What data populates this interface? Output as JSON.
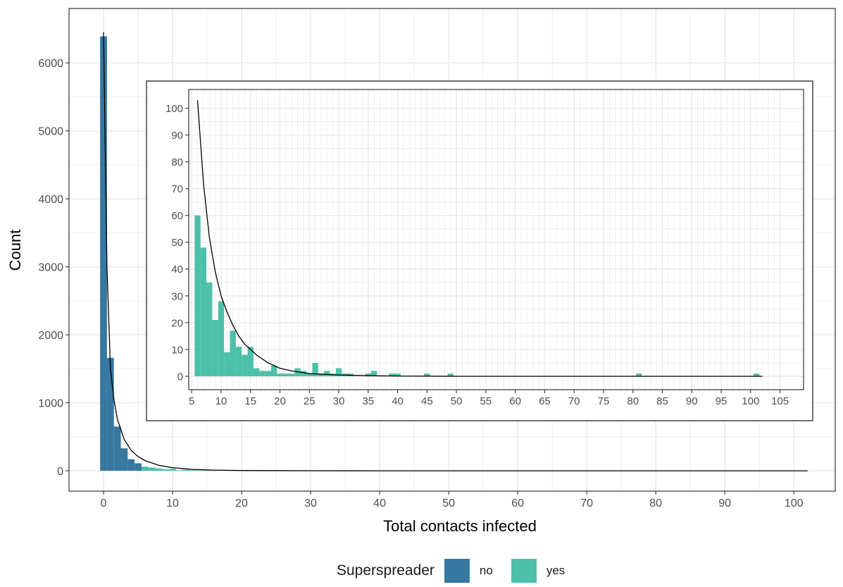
{
  "colors": {
    "no": "#3777a0",
    "yes": "#4cc0a8",
    "curve": "#000000",
    "grid": "#ebebeb",
    "panel_border": "#333333"
  },
  "legend": {
    "title": "Superspreader",
    "items": [
      {
        "key": "no",
        "label": "no"
      },
      {
        "key": "yes",
        "label": "yes"
      }
    ]
  },
  "chart_data": [
    {
      "name": "main",
      "type": "bar",
      "xlabel": "Total contacts infected",
      "ylabel": "Count",
      "xlim": [
        -5,
        106
      ],
      "ylim": [
        -300,
        6800
      ],
      "x_ticks": [
        0,
        10,
        20,
        30,
        40,
        50,
        60,
        70,
        80,
        90,
        100
      ],
      "y_ticks": [
        0,
        1000,
        2000,
        3000,
        4000,
        5000,
        6000
      ],
      "grid": true,
      "series": [
        {
          "name": "no",
          "x": [
            0,
            1,
            2,
            3,
            4,
            5
          ],
          "values": [
            6390,
            1660,
            650,
            330,
            170,
            110
          ]
        },
        {
          "name": "yes",
          "x": [
            6,
            7,
            8,
            9,
            10,
            11,
            12,
            13,
            14,
            15,
            16
          ],
          "values": [
            60,
            48,
            35,
            21,
            28,
            9,
            17,
            11,
            8,
            11,
            3
          ]
        }
      ],
      "curve": {
        "x": [
          0,
          0.5,
          1,
          1.5,
          2,
          3,
          4,
          5,
          6,
          8,
          10,
          13,
          16,
          20,
          30,
          40,
          60,
          80,
          102
        ],
        "y": [
          6450,
          3000,
          1500,
          1050,
          760,
          460,
          300,
          210,
          150,
          80,
          45,
          20,
          10,
          4,
          1,
          0,
          0,
          0,
          0
        ]
      }
    },
    {
      "name": "inset",
      "type": "bar",
      "xlabel": "",
      "ylabel": "",
      "xlim": [
        4.5,
        109
      ],
      "ylim": [
        -5,
        107
      ],
      "x_ticks": [
        5,
        10,
        15,
        20,
        25,
        30,
        35,
        40,
        45,
        50,
        55,
        60,
        65,
        70,
        75,
        80,
        85,
        90,
        95,
        100,
        105
      ],
      "y_ticks": [
        0,
        10,
        20,
        30,
        40,
        50,
        60,
        70,
        80,
        90,
        100
      ],
      "grid": true,
      "series": [
        {
          "name": "yes",
          "x": [
            6,
            7,
            8,
            9,
            10,
            11,
            12,
            13,
            14,
            15,
            16,
            17,
            18,
            19,
            20,
            21,
            22,
            23,
            24,
            25,
            26,
            27,
            28,
            29,
            30,
            31,
            32,
            33,
            34,
            35,
            36,
            37,
            38,
            39,
            40,
            45,
            49,
            81,
            101
          ],
          "values": [
            60,
            48,
            35,
            21,
            28,
            9,
            17,
            11,
            8,
            11,
            3,
            2,
            2,
            4,
            1,
            1,
            1,
            3,
            2,
            1,
            5,
            1,
            2,
            1,
            3,
            1,
            1,
            0,
            0,
            1,
            2,
            0,
            0,
            1,
            1,
            1,
            1,
            1,
            1
          ]
        }
      ],
      "curve": {
        "x": [
          6,
          7,
          8,
          9,
          10,
          11,
          12,
          13,
          14,
          15,
          16,
          18,
          20,
          22,
          25,
          30,
          35,
          40,
          50,
          60,
          80,
          102
        ],
        "y": [
          103,
          72,
          52,
          39,
          30,
          24,
          19,
          15,
          12,
          10,
          8,
          5,
          3,
          2,
          1,
          0.5,
          0.2,
          0.1,
          0,
          0,
          0,
          0
        ]
      }
    }
  ]
}
